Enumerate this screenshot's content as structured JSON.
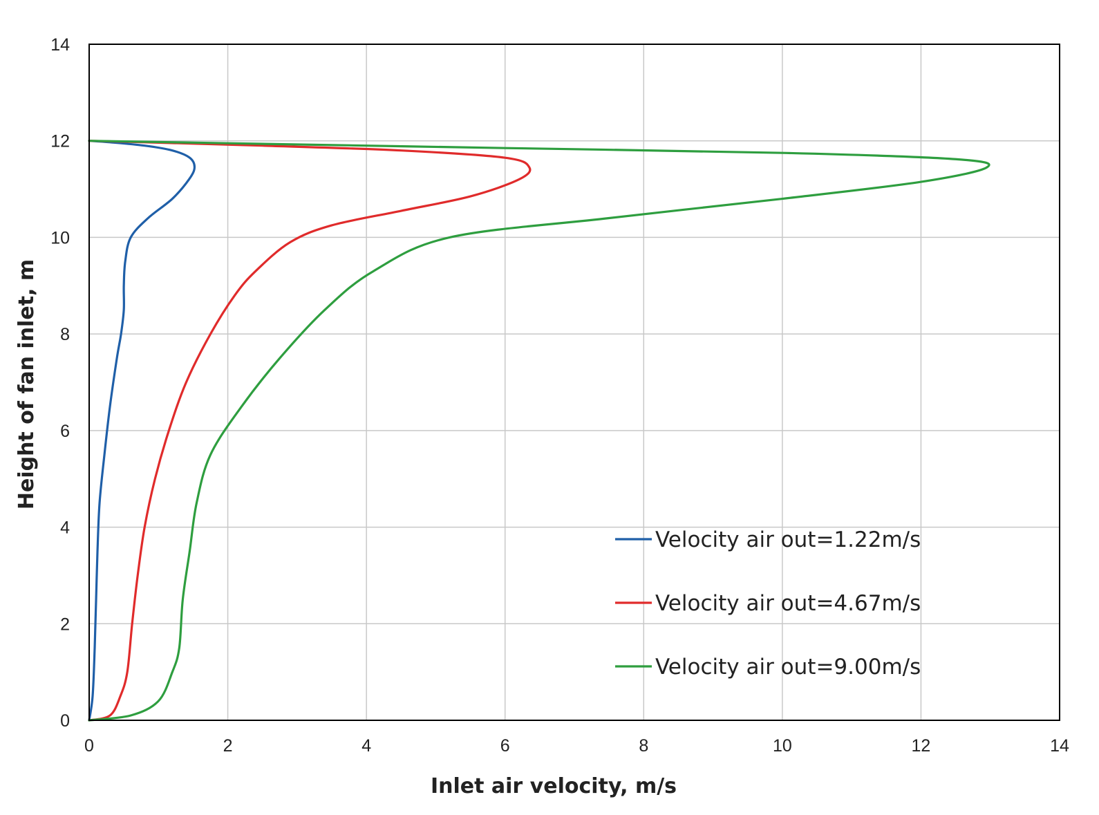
{
  "chart_data": {
    "type": "line",
    "title": "",
    "xlabel": "Inlet air velocity, m/s",
    "ylabel": "Height of fan inlet, m",
    "xlim": [
      0,
      14
    ],
    "ylim": [
      0,
      14
    ],
    "x_ticks": [
      "0",
      "2",
      "4",
      "6",
      "8",
      "10",
      "12",
      "14"
    ],
    "y_ticks": [
      "0",
      "2",
      "4",
      "6",
      "8",
      "10",
      "12",
      "14"
    ],
    "grid": true,
    "legend_position": "bottom-right",
    "series": [
      {
        "name": "Velocity air out=1.22m/s",
        "color": "#1f5fa8",
        "x": [
          0,
          0.05,
          0.08,
          0.1,
          0.12,
          0.15,
          0.22,
          0.3,
          0.4,
          0.46,
          0.5,
          0.5,
          0.52,
          0.6,
          0.85,
          1.2,
          1.44,
          1.52,
          1.45,
          1.2,
          0.8,
          0.3,
          0
        ],
        "y": [
          0,
          0.5,
          1.5,
          2.5,
          3.5,
          4.5,
          5.5,
          6.5,
          7.5,
          8.0,
          8.5,
          9.0,
          9.5,
          10.0,
          10.4,
          10.8,
          11.2,
          11.45,
          11.65,
          11.8,
          11.9,
          11.97,
          12.0
        ]
      },
      {
        "name": "Velocity air out=4.67m/s",
        "color": "#e02b2b",
        "x": [
          0,
          0.3,
          0.45,
          0.55,
          0.62,
          0.7,
          0.8,
          0.95,
          1.15,
          1.4,
          1.75,
          2.1,
          2.4,
          2.9,
          3.5,
          4.5,
          5.5,
          6.2,
          6.35,
          6.0,
          4.5,
          2.5,
          0.8,
          0
        ],
        "y": [
          0,
          0.1,
          0.5,
          1.0,
          2.0,
          3.0,
          4.0,
          5.0,
          6.0,
          7.0,
          8.0,
          8.8,
          9.3,
          9.9,
          10.25,
          10.55,
          10.85,
          11.2,
          11.45,
          11.65,
          11.8,
          11.9,
          11.97,
          12.0
        ]
      },
      {
        "name": "Velocity air out=9.00m/s",
        "color": "#2e9e3f",
        "x": [
          0,
          0.6,
          1.0,
          1.2,
          1.3,
          1.35,
          1.45,
          1.55,
          1.75,
          2.2,
          2.75,
          3.4,
          4.1,
          5.2,
          7.5,
          10.0,
          12.0,
          12.95,
          12.5,
          10.0,
          6.0,
          2.0,
          0
        ],
        "y": [
          0,
          0.1,
          0.4,
          1.0,
          1.5,
          2.5,
          3.5,
          4.5,
          5.5,
          6.5,
          7.5,
          8.5,
          9.3,
          10.0,
          10.4,
          10.8,
          11.15,
          11.45,
          11.62,
          11.75,
          11.85,
          11.95,
          12.0
        ]
      }
    ]
  }
}
